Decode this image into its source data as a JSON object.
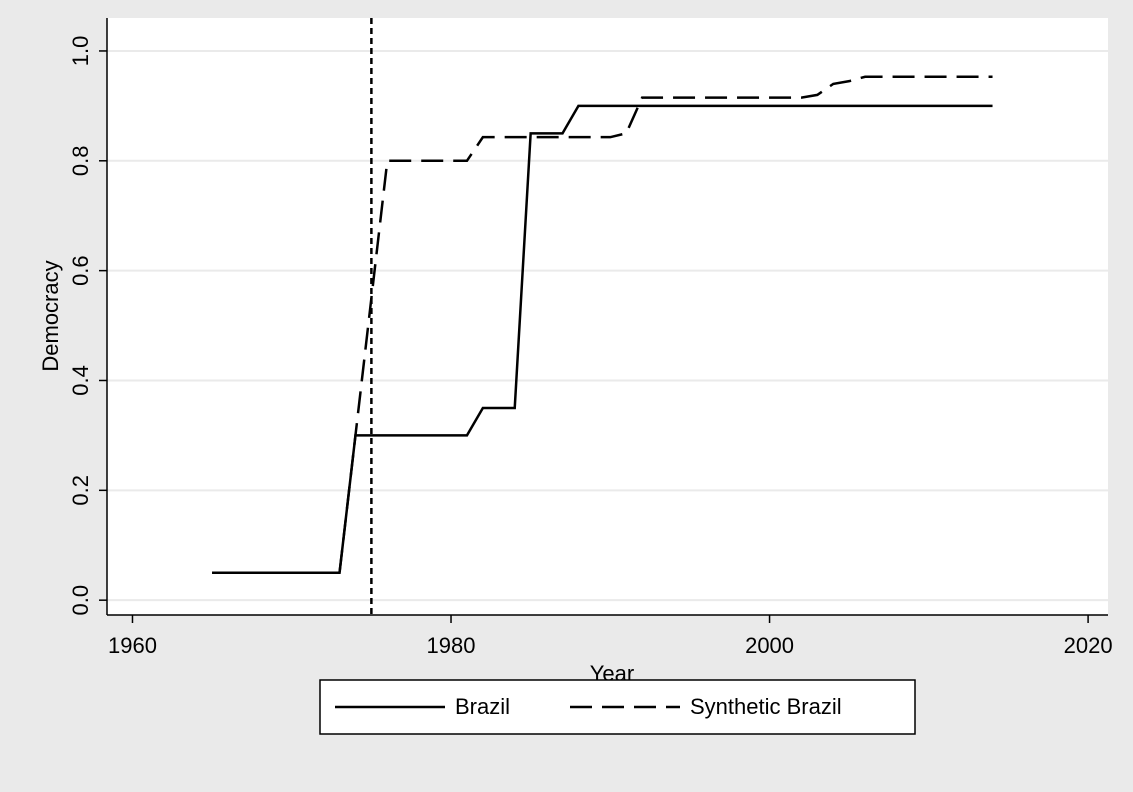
{
  "chart_data": {
    "type": "line",
    "xlabel": "Year",
    "ylabel": "Democracy",
    "x": [
      1965,
      1966,
      1967,
      1968,
      1969,
      1970,
      1971,
      1972,
      1973,
      1974,
      1975,
      1976,
      1977,
      1978,
      1979,
      1980,
      1981,
      1982,
      1983,
      1984,
      1985,
      1986,
      1987,
      1988,
      1989,
      1990,
      1991,
      1992,
      1993,
      1994,
      1995,
      1996,
      1997,
      1998,
      1999,
      2000,
      2001,
      2002,
      2003,
      2004,
      2005,
      2006,
      2007,
      2008,
      2009,
      2010,
      2011,
      2012,
      2013,
      2014
    ],
    "series": [
      {
        "name": "Brazil",
        "color": "#000000",
        "dash": "solid",
        "values": [
          0.05,
          0.05,
          0.05,
          0.05,
          0.05,
          0.05,
          0.05,
          0.05,
          0.05,
          0.3,
          0.3,
          0.3,
          0.3,
          0.3,
          0.3,
          0.3,
          0.3,
          0.35,
          0.35,
          0.35,
          0.85,
          0.85,
          0.85,
          0.9,
          0.9,
          0.9,
          0.9,
          0.9,
          0.9,
          0.9,
          0.9,
          0.9,
          0.9,
          0.9,
          0.9,
          0.9,
          0.9,
          0.9,
          0.9,
          0.9,
          0.9,
          0.9,
          0.9,
          0.9,
          0.9,
          0.9,
          0.9,
          0.9,
          0.9,
          0.9
        ]
      },
      {
        "name": "Synthetic Brazil",
        "color": "#000000",
        "dash": "dashed",
        "values": [
          0.05,
          0.05,
          0.05,
          0.05,
          0.05,
          0.05,
          0.05,
          0.05,
          0.05,
          0.3,
          0.55,
          0.8,
          0.8,
          0.8,
          0.8,
          0.8,
          0.8,
          0.843,
          0.843,
          0.843,
          0.843,
          0.843,
          0.843,
          0.843,
          0.843,
          0.843,
          0.85,
          0.915,
          0.915,
          0.915,
          0.915,
          0.915,
          0.915,
          0.915,
          0.915,
          0.915,
          0.915,
          0.915,
          0.92,
          0.94,
          0.945,
          0.953,
          0.953,
          0.953,
          0.953,
          0.953,
          0.953,
          0.953,
          0.953,
          0.953
        ]
      }
    ],
    "vline": 1975,
    "xlim": [
      1958.4,
      2021.25
    ],
    "xticks": [
      1960,
      1980,
      2000,
      2020
    ],
    "ylim": [
      -0.027,
      1.06
    ],
    "yticks": [
      {
        "value": 0,
        "label": "0.0"
      },
      0.2,
      0.4,
      0.6,
      0.8,
      {
        "value": 1,
        "label": "1.0"
      }
    ],
    "grid": true,
    "legend": "bottom"
  }
}
